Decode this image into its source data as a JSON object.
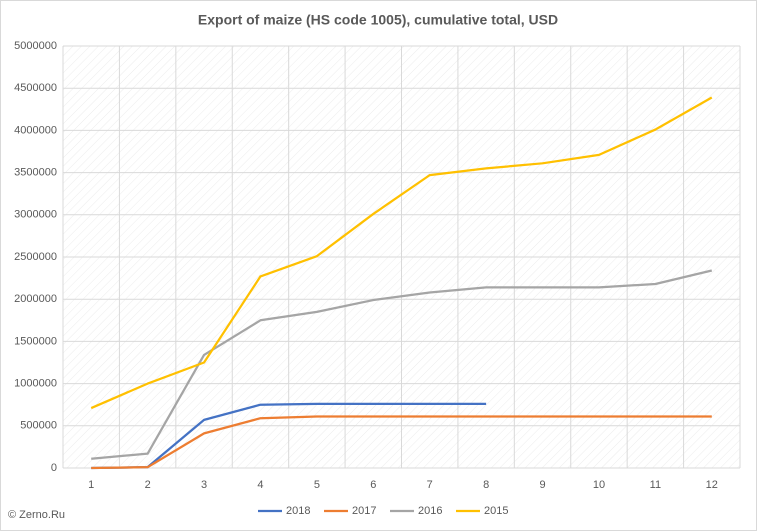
{
  "chart_data": {
    "type": "line",
    "title": "Export of maize (HS code 1005), cumulative total, USD",
    "categories": [
      "1",
      "2",
      "3",
      "4",
      "5",
      "6",
      "7",
      "8",
      "9",
      "10",
      "11",
      "12"
    ],
    "series": [
      {
        "name": "2018",
        "color": "#4472c4",
        "values": [
          0,
          10000,
          570000,
          750000,
          760000,
          760000,
          760000,
          760000,
          null,
          null,
          null,
          null
        ]
      },
      {
        "name": "2017",
        "color": "#ed7d31",
        "values": [
          0,
          10000,
          410000,
          590000,
          610000,
          610000,
          610000,
          610000,
          610000,
          610000,
          610000,
          610000
        ]
      },
      {
        "name": "2016",
        "color": "#a5a5a5",
        "values": [
          110000,
          170000,
          1340000,
          1750000,
          1850000,
          1990000,
          2080000,
          2140000,
          2140000,
          2140000,
          2180000,
          2340000
        ]
      },
      {
        "name": "2015",
        "color": "#ffc000",
        "values": [
          710000,
          1000000,
          1250000,
          2270000,
          2510000,
          3010000,
          3470000,
          3550000,
          3610000,
          3710000,
          4010000,
          4390000
        ]
      }
    ],
    "ylim": [
      0,
      5000000
    ],
    "yticks": [
      0,
      500000,
      1000000,
      1500000,
      2000000,
      2500000,
      3000000,
      3500000,
      4000000,
      4500000,
      5000000
    ],
    "grid": true,
    "legend": "bottom",
    "watermark": "© Zerno.Ru"
  }
}
